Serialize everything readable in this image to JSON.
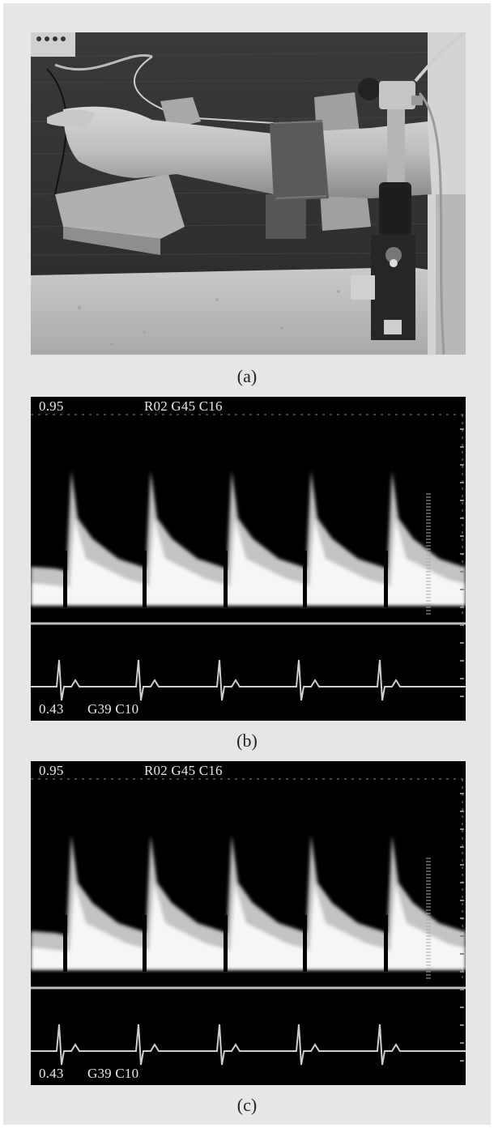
{
  "figures": [
    {
      "id": "a",
      "caption": "(a)",
      "kind": "photo"
    },
    {
      "id": "b",
      "caption": "(b)",
      "kind": "doppler",
      "overlay": {
        "top_left": "0.95",
        "top_mid": "R02 G45 C16",
        "bottom_left": "0.43",
        "bottom_mid": "G39 C10"
      }
    },
    {
      "id": "c",
      "caption": "(c)",
      "kind": "doppler",
      "overlay": {
        "top_left": "0.95",
        "top_mid": "R02 G45 C16",
        "bottom_left": "0.43",
        "bottom_mid": "G39 C10"
      }
    }
  ]
}
